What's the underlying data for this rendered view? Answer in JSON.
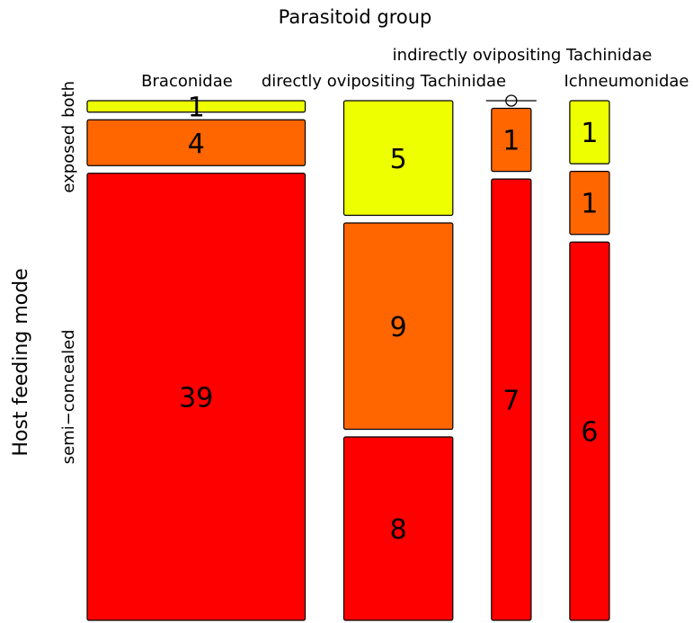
{
  "chart_data": {
    "type": "mosaic",
    "title": "Parasitoid group",
    "ylabel": "Host feeding mode",
    "columns": [
      "Braconidae",
      "directly ovipositing Tachinidae",
      "indirectly ovipositing Tachinidae",
      "Ichneumonidae"
    ],
    "rows": [
      "both",
      "exposed",
      "semi−concealed"
    ],
    "counts": [
      [
        1,
        4,
        39
      ],
      [
        5,
        9,
        8
      ],
      [
        0,
        1,
        7
      ],
      [
        1,
        1,
        6
      ]
    ],
    "colors": {
      "both": "#EEFF00",
      "exposed": "#FF6600",
      "semi−concealed": "#FF0000"
    }
  }
}
